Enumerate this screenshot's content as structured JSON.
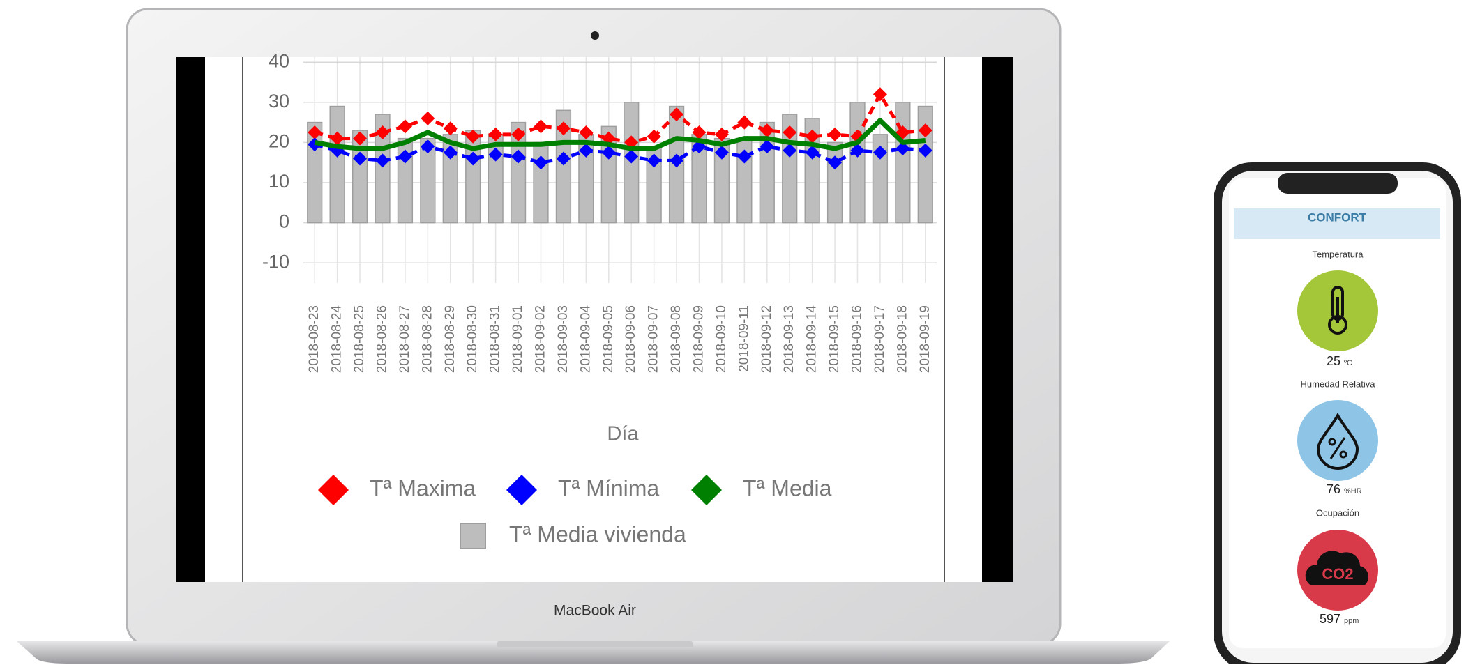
{
  "chart_data": {
    "type": "line",
    "x_label": "Día",
    "categories": [
      "2018-08-23",
      "2018-08-24",
      "2018-08-25",
      "2018-08-26",
      "2018-08-27",
      "2018-08-28",
      "2018-08-29",
      "2018-08-30",
      "2018-08-31",
      "2018-09-01",
      "2018-09-02",
      "2018-09-03",
      "2018-09-04",
      "2018-09-05",
      "2018-09-06",
      "2018-09-07",
      "2018-09-08",
      "2018-09-09",
      "2018-09-10",
      "2018-09-11",
      "2018-09-12",
      "2018-09-13",
      "2018-09-14",
      "2018-09-15",
      "2018-09-16",
      "2018-09-17",
      "2018-09-18",
      "2018-09-19"
    ],
    "series": [
      {
        "name": "Tª Media vivienda",
        "type": "bar",
        "color": "#bdbdbd",
        "values": [
          25,
          29,
          23,
          27,
          21,
          21,
          22,
          23,
          22,
          25,
          20,
          28,
          22,
          24,
          30,
          19,
          29,
          22,
          21,
          21,
          25,
          27,
          26,
          20,
          30,
          22,
          30,
          29
        ]
      },
      {
        "name": "Tª Maxima",
        "type": "line",
        "color": "#ff0000",
        "values": [
          22.5,
          21,
          21,
          22.5,
          24,
          26,
          23.5,
          21.5,
          22,
          22,
          24,
          23.5,
          22.5,
          21,
          20,
          21.5,
          27,
          22.5,
          22,
          25,
          23,
          22.5,
          21.5,
          22,
          21.5,
          32,
          22.5,
          23
        ]
      },
      {
        "name": "Tª Mínima",
        "type": "line",
        "color": "#0000ff",
        "values": [
          19.5,
          18,
          16,
          15.5,
          16.5,
          19,
          17.5,
          16,
          17,
          16.5,
          15,
          16,
          18,
          17.5,
          16.5,
          15.5,
          15.5,
          19,
          17.5,
          16.5,
          19,
          18,
          17.5,
          15,
          18,
          17.5,
          18.5,
          18
        ]
      },
      {
        "name": "Tª Media",
        "type": "line",
        "color": "#008000",
        "values": [
          20,
          19,
          18.5,
          18.5,
          20,
          22.5,
          20,
          18.5,
          19.5,
          19.5,
          19.5,
          20,
          20,
          19.5,
          18.5,
          18.5,
          21,
          20.5,
          19.5,
          21,
          21,
          20,
          19.5,
          18.5,
          20,
          25.5,
          20,
          20.5
        ]
      }
    ],
    "ylim": [
      -15,
      40
    ],
    "yticks": [
      -10,
      0,
      10,
      20,
      30,
      40
    ],
    "grid": true
  },
  "laptop_label": "MacBook Air",
  "phone": {
    "header": "CONFORT",
    "items": [
      {
        "label": "Temperatura",
        "value": "25",
        "unit": "ºC",
        "color": "#a4c639"
      },
      {
        "label": "Humedad Relativa",
        "value": "76",
        "unit": "%HR",
        "color": "#8ec5e6"
      },
      {
        "label": "Ocupación",
        "value": "597",
        "unit": "ppm",
        "color": "#d93a4a",
        "icon_text": "CO2"
      }
    ]
  }
}
